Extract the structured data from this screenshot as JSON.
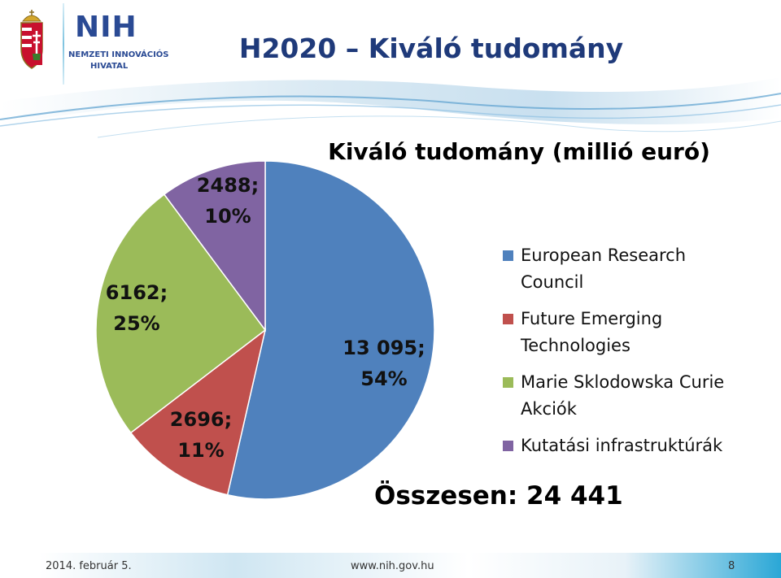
{
  "header": {
    "title": "H2020 – Kiváló tudomány",
    "logo_mark": "NIH",
    "logo_sub1": "NEMZETI INNOVÁCIÓS",
    "logo_sub2": "HIVATAL"
  },
  "chart_data": {
    "type": "pie",
    "title": "Kiváló tudomány (millió euró)",
    "slices": [
      {
        "label": "European Research Council",
        "value": 13095,
        "value_label": "13 095;",
        "percent_label": "54%",
        "color": "#4f81bd"
      },
      {
        "label": "Future Emerging Technologies",
        "value": 2696,
        "value_label": "2696;",
        "percent_label": "11%",
        "color": "#c0504d"
      },
      {
        "label": "Marie Sklodowska Curie Akciók",
        "value": 6162,
        "value_label": "6162;",
        "percent_label": "25%",
        "color": "#9bbb59"
      },
      {
        "label": "Kutatási infrastruktúrák",
        "value": 2488,
        "value_label": "2488;",
        "percent_label": "10%",
        "color": "#8064a2"
      }
    ],
    "legend_position": "right",
    "legend_lines": [
      [
        "European Research",
        "Council"
      ],
      [
        "Future Emerging",
        "Technologies"
      ],
      [
        "Marie Sklodowska Curie",
        "Akciók"
      ],
      [
        "Kutatási infrastruktúrák"
      ]
    ],
    "total_label": "Összesen: 24 441"
  },
  "footer": {
    "date": "2014. február 5.",
    "url": "www.nih.gov.hu",
    "page": "8"
  }
}
